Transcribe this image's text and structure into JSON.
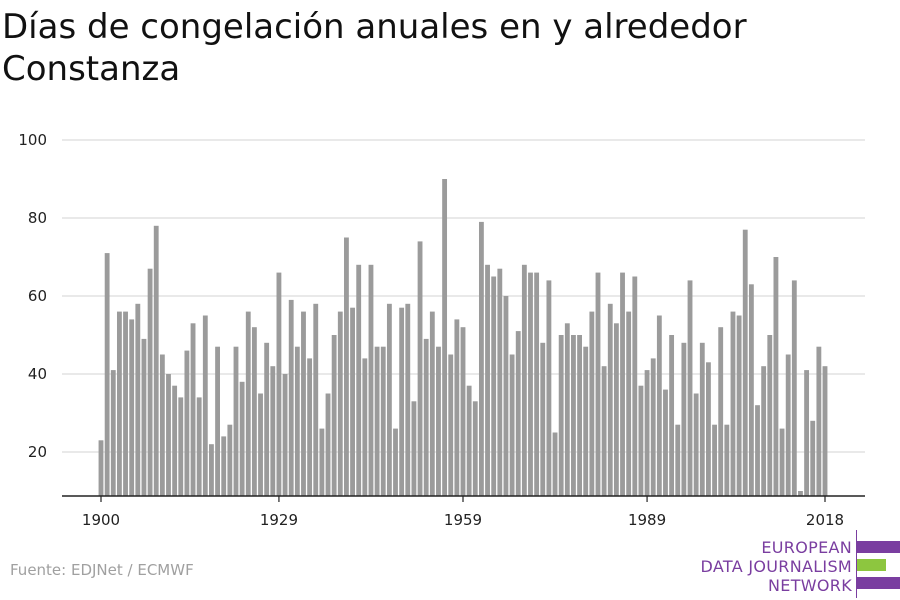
{
  "title": {
    "line1": "Días de congelación anuales en y alrededor",
    "line2": "Constanza"
  },
  "source": "Fuente: EDJNet / ECMWF",
  "logo": {
    "line1": "EUROPEAN",
    "line2": "DATA JOURNALISM",
    "line3": "NETWORK",
    "colors": {
      "purple": "#7a3ea0",
      "green": "#8dc63f"
    }
  },
  "chart_data": {
    "type": "bar",
    "title": "Días de congelación anuales en y alrededor Constanza",
    "xlabel": "",
    "ylabel": "",
    "ylim": [
      8,
      100
    ],
    "yticks": [
      20,
      40,
      60,
      80,
      100
    ],
    "xticks": [
      1900,
      1929,
      1959,
      1989,
      2018
    ],
    "grid": true,
    "bar_color": "#9b9b9b",
    "x": [
      1900,
      1901,
      1902,
      1903,
      1904,
      1905,
      1906,
      1907,
      1908,
      1909,
      1910,
      1911,
      1912,
      1913,
      1914,
      1915,
      1916,
      1917,
      1918,
      1919,
      1920,
      1921,
      1922,
      1923,
      1924,
      1925,
      1926,
      1927,
      1928,
      1929,
      1930,
      1931,
      1932,
      1933,
      1934,
      1935,
      1936,
      1937,
      1938,
      1939,
      1940,
      1941,
      1942,
      1943,
      1944,
      1945,
      1946,
      1947,
      1948,
      1949,
      1950,
      1951,
      1952,
      1953,
      1954,
      1955,
      1956,
      1957,
      1958,
      1959,
      1960,
      1961,
      1962,
      1963,
      1964,
      1965,
      1966,
      1967,
      1968,
      1969,
      1970,
      1971,
      1972,
      1973,
      1974,
      1975,
      1976,
      1977,
      1978,
      1979,
      1980,
      1981,
      1982,
      1983,
      1984,
      1985,
      1986,
      1987,
      1988,
      1989,
      1990,
      1991,
      1992,
      1993,
      1994,
      1995,
      1996,
      1997,
      1998,
      1999,
      2000,
      2001,
      2002,
      2003,
      2004,
      2005,
      2006,
      2007,
      2008,
      2009,
      2010,
      2011,
      2012,
      2013,
      2014,
      2015,
      2016,
      2017,
      2018
    ],
    "values": [
      23,
      71,
      41,
      56,
      56,
      54,
      58,
      49,
      67,
      78,
      45,
      40,
      37,
      34,
      46,
      53,
      34,
      55,
      22,
      47,
      24,
      27,
      47,
      38,
      56,
      52,
      35,
      48,
      42,
      66,
      40,
      59,
      47,
      56,
      44,
      58,
      26,
      35,
      50,
      56,
      75,
      57,
      68,
      44,
      68,
      47,
      47,
      58,
      26,
      57,
      58,
      33,
      74,
      49,
      56,
      47,
      90,
      45,
      54,
      52,
      37,
      33,
      79,
      68,
      65,
      67,
      60,
      45,
      51,
      68,
      66,
      66,
      48,
      64,
      25,
      50,
      53,
      50,
      50,
      47,
      56,
      66,
      42,
      58,
      53,
      66,
      56,
      65,
      37,
      41,
      44,
      55,
      36,
      50,
      27,
      48,
      64,
      35,
      48,
      43,
      27,
      52,
      27,
      56,
      55,
      77,
      63,
      32,
      42,
      50,
      70,
      26,
      45,
      64,
      10,
      41,
      28,
      47,
      42
    ]
  }
}
